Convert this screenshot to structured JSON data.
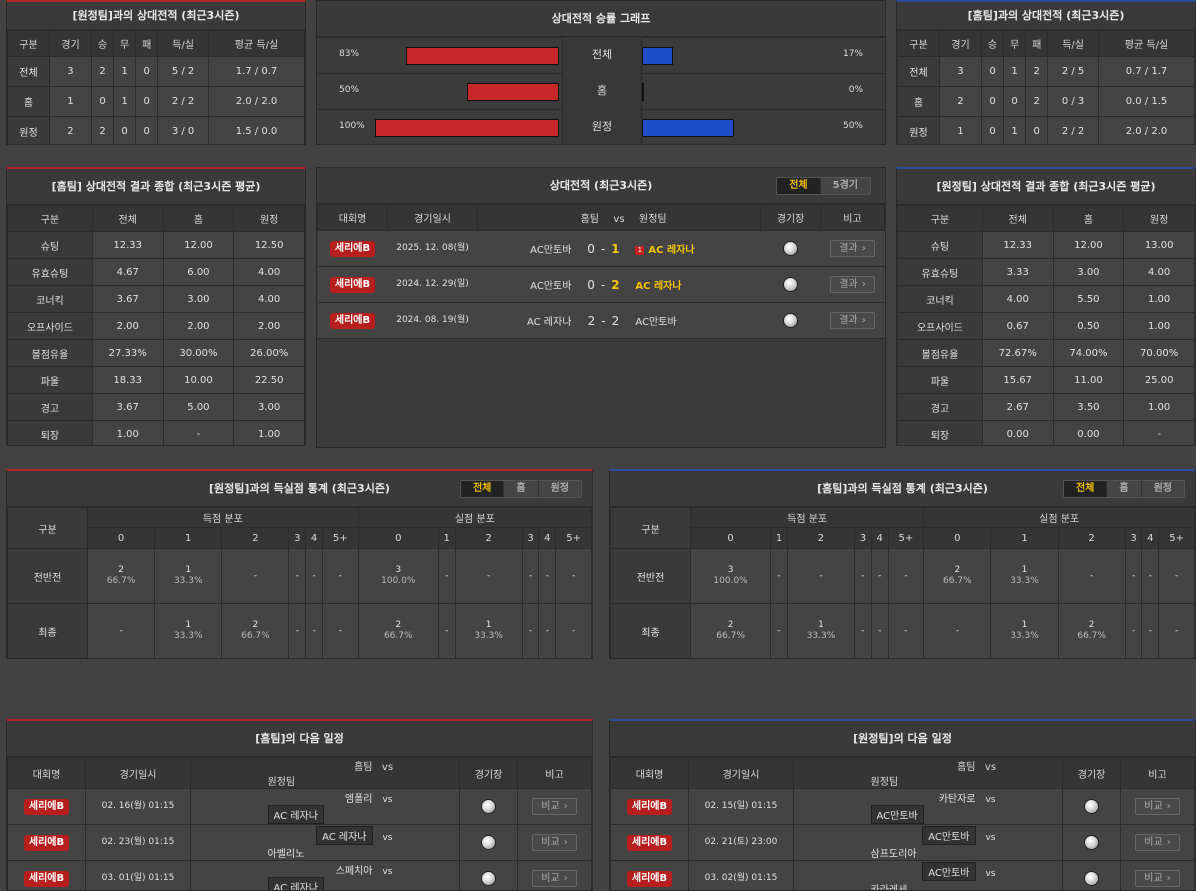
{
  "away_h2h": {
    "title": "[원정팀]과의 상대전적 (최근3시즌)",
    "headers": [
      "구분",
      "경기",
      "승",
      "무",
      "패",
      "득/실",
      "평균 득/실"
    ],
    "rows": [
      [
        "전체",
        "3",
        "2",
        "1",
        "0",
        "5 / 2",
        "1.7 / 0.7"
      ],
      [
        "홈",
        "1",
        "0",
        "1",
        "0",
        "2 / 2",
        "2.0 / 2.0"
      ],
      [
        "원정",
        "2",
        "2",
        "0",
        "0",
        "3 / 0",
        "1.5 / 0.0"
      ]
    ]
  },
  "home_h2h": {
    "title": "[홈팀]과의 상대전적 (최근3시즌)",
    "headers": [
      "구분",
      "경기",
      "승",
      "무",
      "패",
      "득/실",
      "평균 득/실"
    ],
    "rows": [
      [
        "전체",
        "3",
        "0",
        "1",
        "2",
        "2 / 5",
        "0.7 / 1.7"
      ],
      [
        "홈",
        "2",
        "0",
        "0",
        "2",
        "0 / 3",
        "0.0 / 1.5"
      ],
      [
        "원정",
        "1",
        "0",
        "1",
        "0",
        "2 / 2",
        "2.0 / 2.0"
      ]
    ]
  },
  "graph": {
    "title": "상대전적 승률 그래프",
    "rows": [
      {
        "label": "전체",
        "left": "83%",
        "right": "17%",
        "left_value": 83,
        "right_value": 17
      },
      {
        "label": "홈",
        "left": "50%",
        "right": "0%",
        "left_value": 50,
        "right_value": 0
      },
      {
        "label": "원정",
        "left": "100%",
        "right": "50%",
        "left_value": 100,
        "right_value": 50
      }
    ],
    "colors": {
      "left": "#c62828",
      "right": "#1f4fc8"
    }
  },
  "home_summary": {
    "title": "[홈팀] 상대전적 결과 종합 (최근3시즌 평균)",
    "headers": [
      "구분",
      "전체",
      "홈",
      "원정"
    ],
    "rows": [
      [
        "슈팅",
        "12.33",
        "12.00",
        "12.50"
      ],
      [
        "유효슈팅",
        "4.67",
        "6.00",
        "4.00"
      ],
      [
        "코너킥",
        "3.67",
        "3.00",
        "4.00"
      ],
      [
        "오프사이드",
        "2.00",
        "2.00",
        "2.00"
      ],
      [
        "볼점유율",
        "27.33%",
        "30.00%",
        "26.00%"
      ],
      [
        "파울",
        "18.33",
        "10.00",
        "22.50"
      ],
      [
        "경고",
        "3.67",
        "5.00",
        "3.00"
      ],
      [
        "퇴장",
        "1.00",
        "-",
        "1.00"
      ]
    ]
  },
  "away_summary": {
    "title": "[원정팀] 상대전적 결과 종합 (최근3시즌 평균)",
    "headers": [
      "구분",
      "전체",
      "홈",
      "원정"
    ],
    "rows": [
      [
        "슈팅",
        "12.33",
        "12.00",
        "13.00"
      ],
      [
        "유효슈팅",
        "3.33",
        "3.00",
        "4.00"
      ],
      [
        "코너킥",
        "4.00",
        "5.50",
        "1.00"
      ],
      [
        "오프사이드",
        "0.67",
        "0.50",
        "1.00"
      ],
      [
        "볼점유율",
        "72.67%",
        "74.00%",
        "70.00%"
      ],
      [
        "파울",
        "15.67",
        "11.00",
        "25.00"
      ],
      [
        "경고",
        "2.67",
        "3.50",
        "1.00"
      ],
      [
        "퇴장",
        "0.00",
        "0.00",
        "-"
      ]
    ]
  },
  "h2h_matches": {
    "title": "상대전적 (최근3시즌)",
    "tabs": [
      "전체",
      "5경기"
    ],
    "headers": {
      "league": "대회명",
      "date": "경기일시",
      "home": "홈팀",
      "vs": "vs",
      "away": "원정팀",
      "stadium": "경기장",
      "note": "비고"
    },
    "rows": [
      {
        "league": "세리에B",
        "date": "2025. 12. 08(월)",
        "home": "AC만토바",
        "hs": "0",
        "as": "1",
        "away": "AC 레자나",
        "card": "1",
        "btn": "결과"
      },
      {
        "league": "세리에B",
        "date": "2024. 12. 29(일)",
        "home": "AC만토바",
        "hs": "0",
        "as": "2",
        "away": "AC 레자나",
        "card": "",
        "btn": "결과"
      },
      {
        "league": "세리에B",
        "date": "2024. 08. 19(월)",
        "home": "AC 레자나",
        "hs": "2",
        "as": "2",
        "away": "AC만토바",
        "card": "",
        "btn": "결과"
      }
    ]
  },
  "away_goals": {
    "title": "[원정팀]과의 득실점 통계 (최근3시즌)",
    "tabs": [
      "전체",
      "홈",
      "원정"
    ],
    "col_label": "구분",
    "scored": "득점 분포",
    "conceded": "실점 분포",
    "cols": [
      "0",
      "1",
      "2",
      "3",
      "4",
      "5+"
    ],
    "rows": [
      {
        "label": "전반전",
        "cells": [
          [
            "2",
            "66.7%"
          ],
          [
            "1",
            "33.3%"
          ],
          [
            "-",
            ""
          ],
          [
            "-",
            ""
          ],
          [
            "-",
            ""
          ],
          [
            "-",
            ""
          ],
          [
            "3",
            "100.0%"
          ],
          [
            "-",
            ""
          ],
          [
            "-",
            ""
          ],
          [
            "-",
            ""
          ],
          [
            "-",
            ""
          ],
          [
            "-",
            ""
          ]
        ]
      },
      {
        "label": "최종",
        "cells": [
          [
            "-",
            ""
          ],
          [
            "1",
            "33.3%"
          ],
          [
            "2",
            "66.7%"
          ],
          [
            "-",
            ""
          ],
          [
            "-",
            ""
          ],
          [
            "-",
            ""
          ],
          [
            "2",
            "66.7%"
          ],
          [
            "-",
            ""
          ],
          [
            "1",
            "33.3%"
          ],
          [
            "-",
            ""
          ],
          [
            "-",
            ""
          ],
          [
            "-",
            ""
          ]
        ]
      }
    ]
  },
  "home_goals": {
    "title": "[홈팀]과의 득실점 통계 (최근3시즌)",
    "tabs": [
      "전체",
      "홈",
      "원정"
    ],
    "col_label": "구분",
    "scored": "득점 분포",
    "conceded": "실점 분포",
    "cols": [
      "0",
      "1",
      "2",
      "3",
      "4",
      "5+"
    ],
    "rows": [
      {
        "label": "전반전",
        "cells": [
          [
            "3",
            "100.0%"
          ],
          [
            "-",
            ""
          ],
          [
            "-",
            ""
          ],
          [
            "-",
            ""
          ],
          [
            "-",
            ""
          ],
          [
            "-",
            ""
          ],
          [
            "2",
            "66.7%"
          ],
          [
            "1",
            "33.3%"
          ],
          [
            "-",
            ""
          ],
          [
            "-",
            ""
          ],
          [
            "-",
            ""
          ],
          [
            "-",
            ""
          ]
        ]
      },
      {
        "label": "최종",
        "cells": [
          [
            "2",
            "66.7%"
          ],
          [
            "-",
            ""
          ],
          [
            "1",
            "33.3%"
          ],
          [
            "-",
            ""
          ],
          [
            "-",
            ""
          ],
          [
            "-",
            ""
          ],
          [
            "-",
            ""
          ],
          [
            "1",
            "33.3%"
          ],
          [
            "2",
            "66.7%"
          ],
          [
            "-",
            ""
          ],
          [
            "-",
            ""
          ],
          [
            "-",
            ""
          ]
        ]
      }
    ]
  },
  "home_next": {
    "title": "[홈팀]의 다음 일정",
    "headers": {
      "league": "대회명",
      "date": "경기일시",
      "home": "홈팀",
      "vs": "vs",
      "away": "원정팀",
      "stadium": "경기장",
      "note": "비고"
    },
    "rows": [
      {
        "league": "세리에B",
        "date": "02. 16(월) 01:15",
        "home": "엠폴리",
        "away": "AC 레자나",
        "hl": "away",
        "btn": "비교"
      },
      {
        "league": "세리에B",
        "date": "02. 23(월) 01:15",
        "home": "AC 레자나",
        "away": "아벨리노",
        "hl": "home",
        "btn": "비교"
      },
      {
        "league": "세리에B",
        "date": "03. 01(일) 01:15",
        "home": "스페치아",
        "away": "AC 레자나",
        "hl": "away",
        "btn": "비교"
      }
    ]
  },
  "away_next": {
    "title": "[원정팀]의 다음 일정",
    "headers": {
      "league": "대회명",
      "date": "경기일시",
      "home": "홈팀",
      "vs": "vs",
      "away": "원정팀",
      "stadium": "경기장",
      "note": "비고"
    },
    "rows": [
      {
        "league": "세리에B",
        "date": "02. 15(일) 01:15",
        "home": "카탄자로",
        "away": "AC만토바",
        "hl": "away",
        "btn": "비교"
      },
      {
        "league": "세리에B",
        "date": "02. 21(토) 23:00",
        "home": "AC만토바",
        "away": "삼프도리아",
        "hl": "home",
        "btn": "비교"
      },
      {
        "league": "세리에B",
        "date": "03. 02(월) 01:15",
        "home": "AC만토바",
        "away": "카라레세",
        "hl": "home",
        "btn": "비교"
      }
    ]
  }
}
